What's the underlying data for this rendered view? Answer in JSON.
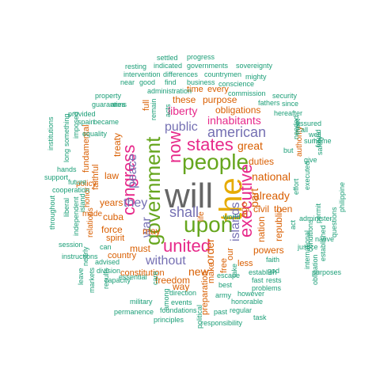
{
  "palette": {
    "teal": "#1b9e77",
    "orange": "#d95f02",
    "purple": "#7570b3",
    "magenta": "#e7298a",
    "green": "#66a61e",
    "gold": "#e6ab02",
    "brown": "#a6761d",
    "gray": "#666666"
  },
  "words": [
    {
      "text": "will",
      "color": "gray"
    },
    {
      "text": "the",
      "color": "gold"
    },
    {
      "text": "government",
      "color": "green"
    },
    {
      "text": "people",
      "color": "green"
    },
    {
      "text": "upon",
      "color": "green"
    },
    {
      "text": "united",
      "color": "magenta"
    },
    {
      "text": "states",
      "color": "magenta"
    },
    {
      "text": "congress",
      "color": "magenta"
    },
    {
      "text": "executive",
      "color": "magenta"
    },
    {
      "text": "now",
      "color": "magenta"
    },
    {
      "text": "american",
      "color": "purple"
    },
    {
      "text": "shall",
      "color": "purple"
    },
    {
      "text": "islands",
      "color": "purple"
    },
    {
      "text": "public",
      "color": "purple"
    },
    {
      "text": "without",
      "color": "purple"
    },
    {
      "text": "they",
      "color": "purple"
    },
    {
      "text": "peace",
      "color": "purple"
    },
    {
      "text": "war",
      "color": "purple"
    },
    {
      "text": "inhabitants",
      "color": "magenta"
    },
    {
      "text": "liberty",
      "color": "magenta"
    },
    {
      "text": "national",
      "color": "orange"
    },
    {
      "text": "part",
      "color": "orange"
    },
    {
      "text": "great",
      "color": "orange"
    },
    {
      "text": "already",
      "color": "orange"
    },
    {
      "text": "order",
      "color": "orange"
    },
    {
      "text": "new",
      "color": "orange"
    },
    {
      "text": "freedom",
      "color": "orange"
    },
    {
      "text": "cuba",
      "color": "orange"
    },
    {
      "text": "force",
      "color": "orange"
    },
    {
      "text": "years",
      "color": "orange"
    },
    {
      "text": "law",
      "color": "orange"
    },
    {
      "text": "treaty",
      "color": "orange"
    },
    {
      "text": "these",
      "color": "orange"
    },
    {
      "text": "purpose",
      "color": "orange"
    },
    {
      "text": "obligations",
      "color": "orange"
    },
    {
      "text": "duties",
      "color": "orange"
    },
    {
      "text": "civil",
      "color": "orange"
    },
    {
      "text": "then",
      "color": "orange"
    },
    {
      "text": "republic",
      "color": "orange"
    },
    {
      "text": "nation",
      "color": "orange"
    },
    {
      "text": "powers",
      "color": "orange"
    },
    {
      "text": "ago",
      "color": "orange"
    },
    {
      "text": "make",
      "color": "orange"
    },
    {
      "text": "our",
      "color": "orange"
    },
    {
      "text": "free",
      "color": "orange"
    },
    {
      "text": "preparation",
      "color": "orange"
    },
    {
      "text": "way",
      "color": "orange"
    },
    {
      "text": "must",
      "color": "orange"
    },
    {
      "text": "may",
      "color": "orange"
    },
    {
      "text": "spirit",
      "color": "orange"
    },
    {
      "text": "country",
      "color": "orange"
    },
    {
      "text": "constitution",
      "color": "orange"
    },
    {
      "text": "faithful",
      "color": "orange"
    },
    {
      "text": "fundamental",
      "color": "orange"
    },
    {
      "text": "honor",
      "color": "orange"
    },
    {
      "text": "relations",
      "color": "orange"
    },
    {
      "text": "policy",
      "color": "orange"
    },
    {
      "text": "made",
      "color": "orange"
    },
    {
      "text": "every",
      "color": "orange"
    },
    {
      "text": "time",
      "color": "orange"
    },
    {
      "text": "full",
      "color": "orange"
    },
    {
      "text": "life",
      "color": "orange"
    },
    {
      "text": "less",
      "color": "orange"
    },
    {
      "text": "authority",
      "color": "orange"
    },
    {
      "text": "settled",
      "color": "teal"
    },
    {
      "text": "progress",
      "color": "teal"
    },
    {
      "text": "resting",
      "color": "teal"
    },
    {
      "text": "indicated",
      "color": "teal"
    },
    {
      "text": "governments",
      "color": "teal"
    },
    {
      "text": "sovereignty",
      "color": "teal"
    },
    {
      "text": "intervention",
      "color": "teal"
    },
    {
      "text": "differences",
      "color": "teal"
    },
    {
      "text": "countrymen",
      "color": "teal"
    },
    {
      "text": "mighty",
      "color": "teal"
    },
    {
      "text": "near",
      "color": "teal"
    },
    {
      "text": "good",
      "color": "teal"
    },
    {
      "text": "find",
      "color": "teal"
    },
    {
      "text": "business",
      "color": "teal"
    },
    {
      "text": "conscience",
      "color": "teal"
    },
    {
      "text": "administration",
      "color": "teal"
    },
    {
      "text": "property",
      "color": "teal"
    },
    {
      "text": "arms",
      "color": "teal"
    },
    {
      "text": "commission",
      "color": "teal"
    },
    {
      "text": "security",
      "color": "teal"
    },
    {
      "text": "guaranties",
      "color": "teal"
    },
    {
      "text": "fathers",
      "color": "teal"
    },
    {
      "text": "since",
      "color": "teal"
    },
    {
      "text": "acts",
      "color": "teal"
    },
    {
      "text": "remain",
      "color": "teal"
    },
    {
      "text": "provided",
      "color": "teal"
    },
    {
      "text": "spain",
      "color": "teal"
    },
    {
      "text": "became",
      "color": "teal"
    },
    {
      "text": "hereafter",
      "color": "teal"
    },
    {
      "text": "equality",
      "color": "teal"
    },
    {
      "text": "imposed",
      "color": "teal"
    },
    {
      "text": "something",
      "color": "teal"
    },
    {
      "text": "long",
      "color": "teal"
    },
    {
      "text": "hands",
      "color": "teal"
    },
    {
      "text": "future",
      "color": "teal"
    },
    {
      "text": "support",
      "color": "teal"
    },
    {
      "text": "institutions",
      "color": "teal"
    },
    {
      "text": "cooperation",
      "color": "teal"
    },
    {
      "text": "throughout",
      "color": "teal"
    },
    {
      "text": "liberal",
      "color": "teal"
    },
    {
      "text": "independent",
      "color": "teal"
    },
    {
      "text": "island",
      "color": "teal"
    },
    {
      "text": "session",
      "color": "teal"
    },
    {
      "text": "instructions",
      "color": "teal"
    },
    {
      "text": "nearly",
      "color": "teal"
    },
    {
      "text": "can",
      "color": "teal"
    },
    {
      "text": "advised",
      "color": "teal"
    },
    {
      "text": "division",
      "color": "teal"
    },
    {
      "text": "leave",
      "color": "teal"
    },
    {
      "text": "markets",
      "color": "teal"
    },
    {
      "text": "results",
      "color": "teal"
    },
    {
      "text": "capacity",
      "color": "teal"
    },
    {
      "text": "essential",
      "color": "teal"
    },
    {
      "text": "military",
      "color": "teal"
    },
    {
      "text": "permanence",
      "color": "teal"
    },
    {
      "text": "care",
      "color": "teal"
    },
    {
      "text": "direction",
      "color": "teal"
    },
    {
      "text": "among",
      "color": "teal"
    },
    {
      "text": "events",
      "color": "teal"
    },
    {
      "text": "foundations",
      "color": "teal"
    },
    {
      "text": "principles",
      "color": "teal"
    },
    {
      "text": "political",
      "color": "teal"
    },
    {
      "text": "responsibility",
      "color": "teal"
    },
    {
      "text": "task",
      "color": "teal"
    },
    {
      "text": "regular",
      "color": "teal"
    },
    {
      "text": "past",
      "color": "teal"
    },
    {
      "text": "honorable",
      "color": "teal"
    },
    {
      "text": "however",
      "color": "teal"
    },
    {
      "text": "army",
      "color": "teal"
    },
    {
      "text": "best",
      "color": "teal"
    },
    {
      "text": "establish",
      "color": "teal"
    },
    {
      "text": "fast",
      "color": "teal"
    },
    {
      "text": "rests",
      "color": "teal"
    },
    {
      "text": "problems",
      "color": "teal"
    },
    {
      "text": "take",
      "color": "teal"
    },
    {
      "text": "god",
      "color": "teal"
    },
    {
      "text": "faith",
      "color": "teal"
    },
    {
      "text": "world",
      "color": "teal"
    },
    {
      "text": "act",
      "color": "teal"
    },
    {
      "text": "escape",
      "color": "teal"
    },
    {
      "text": "justice",
      "color": "teal"
    },
    {
      "text": "conditions",
      "color": "teal"
    },
    {
      "text": "native",
      "color": "teal"
    },
    {
      "text": "permit",
      "color": "teal"
    },
    {
      "text": "administer",
      "color": "teal"
    },
    {
      "text": "obligation",
      "color": "teal"
    },
    {
      "text": "established",
      "color": "teal"
    },
    {
      "text": "international",
      "color": "teal"
    },
    {
      "text": "purposes",
      "color": "teal"
    },
    {
      "text": "questions",
      "color": "teal"
    },
    {
      "text": "philippine",
      "color": "teal"
    },
    {
      "text": "executed",
      "color": "teal"
    },
    {
      "text": "safety",
      "color": "teal"
    },
    {
      "text": "effort",
      "color": "teal"
    },
    {
      "text": "give",
      "color": "teal"
    },
    {
      "text": "found",
      "color": "teal"
    },
    {
      "text": "sum",
      "color": "teal"
    },
    {
      "text": "home",
      "color": "teal"
    },
    {
      "text": "needed",
      "color": "teal"
    },
    {
      "text": "assured",
      "color": "teal"
    },
    {
      "text": "well",
      "color": "teal"
    },
    {
      "text": "meet",
      "color": "teal"
    },
    {
      "text": "all",
      "color": "teal"
    },
    {
      "text": "but",
      "color": "teal"
    }
  ]
}
